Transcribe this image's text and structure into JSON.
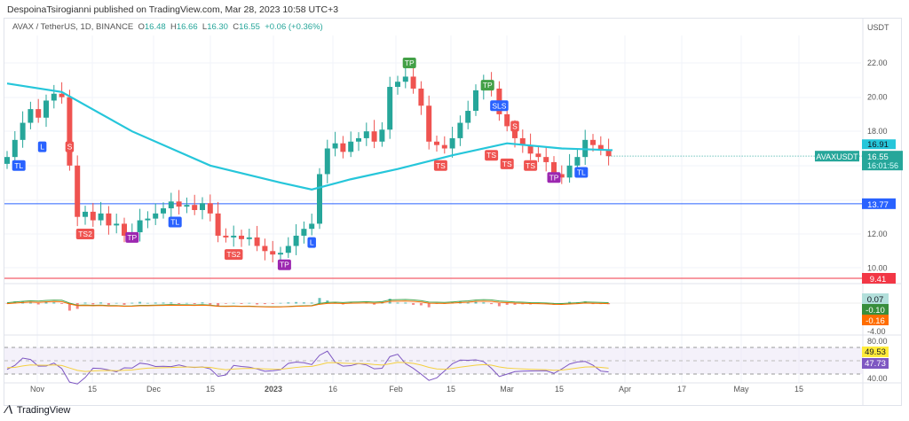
{
  "header": {
    "published": "DespoinaTsirogianni published on TradingView.com, Mar 28, 2023 10:58 UTC+3"
  },
  "legend": {
    "symbol": "AVAX / TetherUS, 1D, BINANCE",
    "o_label": "O",
    "o": "16.48",
    "h_label": "H",
    "h": "16.66",
    "l_label": "L",
    "l": "16.30",
    "c_label": "C",
    "c": "16.55",
    "change": "+0.06 (+0.36%)"
  },
  "footer": {
    "brand": "TradingView"
  },
  "colors": {
    "up": "#26a69a",
    "down": "#ef5350",
    "ma": "#26c6da",
    "support": "#2962ff",
    "stop": "#f23645",
    "rsi": "#7e57c2",
    "rsi_ma": "#f4d03f",
    "macd": "#43a047",
    "signal": "#ff6d00"
  },
  "chart_data": {
    "type": "candlestick",
    "currency": "USDT",
    "start_date": "2022-10-24",
    "step_days": 2,
    "closes": [
      16.5,
      17.5,
      18.5,
      19.3,
      18.8,
      19.8,
      20.2,
      20.0,
      16.0,
      13.0,
      13.3,
      12.8,
      13.2,
      12.5,
      12.6,
      11.9,
      12.1,
      12.8,
      12.9,
      13.2,
      13.5,
      13.9,
      13.6,
      13.7,
      13.4,
      13.8,
      13.2,
      11.9,
      11.8,
      11.9,
      11.7,
      11.8,
      11.3,
      11.0,
      10.8,
      10.9,
      11.3,
      11.9,
      12.3,
      12.6,
      15.5,
      17.0,
      17.3,
      16.8,
      17.4,
      17.6,
      18.0,
      17.4,
      18.1,
      20.6,
      20.9,
      21.2,
      20.5,
      19.5,
      17.4,
      17.2,
      17.0,
      17.6,
      18.5,
      19.2,
      20.4,
      20.8,
      20.5,
      19.0,
      18.3,
      17.6,
      17.2,
      16.7,
      16.5,
      16.2,
      15.5,
      15.3,
      16.0,
      16.5,
      17.5,
      17.2,
      16.9,
      16.55
    ],
    "moving_average": [
      [
        0,
        20.8
      ],
      [
        14,
        20.3
      ],
      [
        32,
        18.0
      ],
      [
        52,
        16.0
      ],
      [
        70,
        15.0
      ],
      [
        78,
        14.6
      ],
      [
        88,
        15.2
      ],
      [
        100,
        15.8
      ],
      [
        114,
        16.6
      ],
      [
        128,
        17.3
      ],
      [
        142,
        17.0
      ],
      [
        155,
        16.9
      ]
    ],
    "y_ticks": [
      "22.00",
      "20.00",
      "18.00",
      "12.00",
      "10.00"
    ],
    "x_ticks": [
      "Nov",
      "15",
      "Dec",
      "15",
      "2023",
      "16",
      "Feb",
      "15",
      "Mar",
      "15",
      "Apr",
      "17",
      "May",
      "15"
    ],
    "horizontal_lines": [
      {
        "price": 13.77,
        "label": "13.77"
      },
      {
        "price": 9.41,
        "label": "9.41"
      }
    ],
    "price_labels": {
      "ma": "16.91",
      "symbol": "AVAXUSDT",
      "last": "16.55",
      "countdown": "16:01:56"
    },
    "markers": [
      {
        "d": 3,
        "p": 16.0,
        "t": "TL",
        "k": "tl"
      },
      {
        "d": 9,
        "p": 17.1,
        "t": "L",
        "k": "tl"
      },
      {
        "d": 16,
        "p": 17.1,
        "t": "S",
        "k": "s"
      },
      {
        "d": 20,
        "p": 12.0,
        "t": "TS2",
        "k": "s"
      },
      {
        "d": 32,
        "p": 11.8,
        "t": "TP",
        "k": "tp"
      },
      {
        "d": 43,
        "p": 12.7,
        "t": "TL",
        "k": "tl"
      },
      {
        "d": 58,
        "p": 10.8,
        "t": "TS2",
        "k": "s"
      },
      {
        "d": 71,
        "p": 10.2,
        "t": "TP",
        "k": "tp"
      },
      {
        "d": 78,
        "p": 11.5,
        "t": "L",
        "k": "tl"
      },
      {
        "d": 103,
        "p": 22.0,
        "t": "TP",
        "k": "tpg"
      },
      {
        "d": 111,
        "p": 16.0,
        "t": "TS",
        "k": "s"
      },
      {
        "d": 123,
        "p": 20.7,
        "t": "TP",
        "k": "tpg"
      },
      {
        "d": 124,
        "p": 16.6,
        "t": "TS",
        "k": "s"
      },
      {
        "d": 126,
        "p": 19.5,
        "t": "SLS",
        "k": "tl"
      },
      {
        "d": 128,
        "p": 16.1,
        "t": "TS",
        "k": "s"
      },
      {
        "d": 130,
        "p": 18.3,
        "t": "S",
        "k": "s"
      },
      {
        "d": 134,
        "p": 16.0,
        "t": "TS",
        "k": "s"
      },
      {
        "d": 140,
        "p": 15.3,
        "t": "TP",
        "k": "tp"
      },
      {
        "d": 147,
        "p": 15.6,
        "t": "TL",
        "k": "tl"
      }
    ],
    "macd": {
      "hist": "0.07",
      "macd": "-0.10",
      "signal": "-0.16",
      "tick": "-4.00"
    },
    "rsi": {
      "rsi": "49.53",
      "ma": "47.73",
      "upper": "80.00",
      "lower": "40.00"
    }
  }
}
